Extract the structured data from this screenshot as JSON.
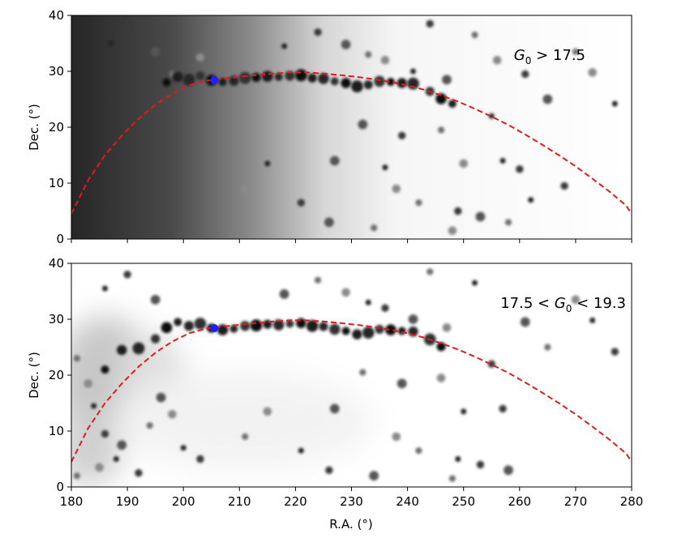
{
  "chart_data": [
    {
      "type": "scatter",
      "panel": "top",
      "title": "",
      "xlabel": "",
      "ylabel": "Dec. (°)",
      "xlim": [
        180,
        280
      ],
      "ylim": [
        0,
        40
      ],
      "x_ticks": [
        180,
        190,
        200,
        210,
        220,
        230,
        240,
        250,
        260,
        270,
        280
      ],
      "y_ticks": [
        0,
        10,
        20,
        30,
        40
      ],
      "show_x_tick_labels": false,
      "grid": false,
      "annotation": {
        "prefix": "G",
        "subscript": "0",
        "suffix": " > 17.5",
        "full": "G0 > 17.5"
      },
      "background_density": "dark (dense stars) toward low R.A., fading to white beyond ~215°",
      "stream_track": {
        "color": "#e31a1c",
        "style": "dashed",
        "x": [
          180,
          183,
          186,
          189,
          192,
          195,
          198,
          201,
          204,
          207,
          210,
          213,
          216,
          219,
          222,
          225,
          228,
          231,
          234,
          237,
          240,
          243,
          246,
          249,
          252,
          255,
          258,
          261,
          264,
          267,
          270,
          273,
          276,
          279,
          280
        ],
        "y": [
          4.5,
          10.5,
          15.0,
          18.5,
          21.5,
          24.0,
          26.0,
          27.5,
          28.3,
          28.7,
          29.0,
          29.3,
          29.6,
          29.8,
          29.8,
          29.6,
          29.3,
          29.0,
          28.6,
          28.1,
          27.5,
          26.7,
          25.7,
          24.6,
          23.3,
          21.9,
          20.4,
          18.7,
          16.9,
          15.0,
          13.0,
          10.8,
          8.5,
          6.0,
          4.5
        ]
      },
      "marker": {
        "color": "#1f1fff",
        "x": 205.5,
        "y": 28.4
      },
      "stream_stars": {
        "x": [
          197,
          199,
          201,
          203,
          205,
          207,
          209,
          211,
          213,
          215,
          217,
          219,
          221,
          223,
          225,
          227,
          229,
          231,
          233,
          235,
          237,
          239,
          241,
          244,
          246,
          248
        ],
        "y": [
          28.0,
          29.0,
          28.5,
          29.2,
          28.4,
          28.1,
          28.3,
          28.8,
          28.9,
          29.1,
          29.0,
          29.2,
          29.3,
          28.8,
          28.7,
          28.2,
          27.9,
          27.3,
          27.6,
          28.2,
          28.1,
          27.9,
          27.8,
          26.4,
          25.1,
          24.2
        ]
      },
      "field_stars": {
        "x": [
          187,
          190,
          195,
          198,
          203,
          218,
          224,
          229,
          233,
          236,
          241,
          244,
          247,
          252,
          256,
          257,
          261,
          265,
          270,
          273,
          277,
          239,
          232,
          246,
          250,
          255,
          260,
          227,
          242,
          238,
          236,
          249,
          253,
          258,
          211,
          215,
          221,
          226,
          234,
          248,
          262,
          268
        ],
        "y": [
          35.0,
          38.5,
          33.5,
          29.5,
          32.5,
          34.5,
          37.0,
          34.8,
          33.0,
          32.0,
          30.0,
          38.5,
          28.5,
          36.5,
          32.0,
          14.0,
          29.5,
          25.0,
          33.5,
          29.8,
          24.2,
          18.5,
          20.5,
          19.5,
          13.5,
          22.0,
          12.5,
          14.0,
          6.5,
          9.0,
          12.8,
          5.0,
          4.0,
          3.0,
          9.0,
          13.5,
          6.5,
          3.0,
          2.0,
          1.5,
          7.0,
          9.5
        ]
      }
    },
    {
      "type": "scatter",
      "panel": "bottom",
      "title": "",
      "xlabel": "R.A. (°)",
      "ylabel": "Dec. (°)",
      "xlim": [
        180,
        280
      ],
      "ylim": [
        0,
        40
      ],
      "x_ticks": [
        180,
        190,
        200,
        210,
        220,
        230,
        240,
        250,
        260,
        270,
        280
      ],
      "y_ticks": [
        0,
        10,
        20,
        30,
        40
      ],
      "show_x_tick_labels": true,
      "grid": false,
      "annotation": {
        "prefix": "17.5 < G",
        "subscript": "0",
        "suffix": " < 19.3",
        "full": "17.5 < G0 < 19.3"
      },
      "background_density": "light, with a grey spur extending from the stream toward low R.A. and Dec.",
      "stream_track": {
        "color": "#e31a1c",
        "style": "dashed",
        "x": [
          180,
          183,
          186,
          189,
          192,
          195,
          198,
          201,
          204,
          207,
          210,
          213,
          216,
          219,
          222,
          225,
          228,
          231,
          234,
          237,
          240,
          243,
          246,
          249,
          252,
          255,
          258,
          261,
          264,
          267,
          270,
          273,
          276,
          279,
          280
        ],
        "y": [
          4.5,
          10.5,
          15.0,
          18.5,
          21.5,
          24.0,
          26.0,
          27.5,
          28.3,
          28.7,
          29.0,
          29.3,
          29.6,
          29.8,
          29.8,
          29.6,
          29.3,
          29.0,
          28.6,
          28.1,
          27.5,
          26.7,
          25.7,
          24.6,
          23.3,
          21.9,
          20.4,
          18.7,
          16.9,
          15.0,
          13.0,
          10.8,
          8.5,
          6.0,
          4.5
        ]
      },
      "marker": {
        "color": "#1f1fff",
        "x": 205.5,
        "y": 28.4
      },
      "stream_stars": {
        "x": [
          186,
          189,
          192,
          195,
          197,
          199,
          201,
          203,
          205,
          207,
          209,
          211,
          213,
          215,
          217,
          219,
          221,
          223,
          225,
          227,
          229,
          231,
          233,
          235,
          237,
          239,
          241,
          244,
          246
        ],
        "y": [
          21.0,
          24.5,
          24.8,
          26.5,
          28.5,
          29.5,
          28.8,
          29.2,
          28.4,
          28.1,
          28.3,
          28.8,
          28.9,
          29.1,
          29.0,
          29.2,
          29.3,
          28.8,
          28.7,
          28.2,
          27.9,
          27.3,
          27.6,
          28.2,
          28.1,
          27.9,
          27.8,
          26.4,
          25.1
        ]
      },
      "field_stars": {
        "x": [
          186,
          190,
          195,
          181,
          183,
          184,
          186,
          189,
          194,
          198,
          200,
          203,
          218,
          224,
          229,
          233,
          236,
          241,
          244,
          247,
          252,
          257,
          261,
          265,
          270,
          273,
          277,
          239,
          232,
          246,
          250,
          255,
          227,
          242,
          238,
          249,
          253,
          258,
          211,
          215,
          221,
          226,
          234,
          248,
          185,
          188,
          192,
          196,
          181
        ],
        "y": [
          35.5,
          38.0,
          33.5,
          23.0,
          18.5,
          14.5,
          9.5,
          7.5,
          11.0,
          13.0,
          7.0,
          5.0,
          34.5,
          37.0,
          34.8,
          33.0,
          32.0,
          30.0,
          38.5,
          28.5,
          36.5,
          14.0,
          29.5,
          25.0,
          33.5,
          29.8,
          24.2,
          18.5,
          20.5,
          19.5,
          13.5,
          22.0,
          14.0,
          6.5,
          9.0,
          5.0,
          4.0,
          3.0,
          9.0,
          13.5,
          6.5,
          3.0,
          2.0,
          1.5,
          3.5,
          5.0,
          2.5,
          16.0,
          2.0
        ]
      }
    }
  ]
}
